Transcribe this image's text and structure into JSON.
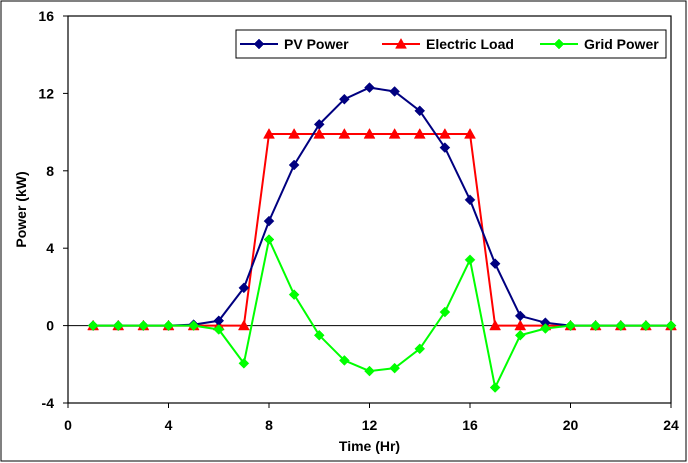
{
  "chart_data": {
    "type": "line",
    "title": "",
    "xlabel": "Time (Hr)",
    "ylabel": "Power (kW)",
    "xlim": [
      0,
      24
    ],
    "ylim": [
      -4,
      16
    ],
    "xticks": [
      0,
      4,
      8,
      12,
      16,
      20,
      24
    ],
    "yticks": [
      -4,
      0,
      4,
      8,
      12,
      16
    ],
    "grid": false,
    "legend_position": "top-right",
    "x": [
      1,
      2,
      3,
      4,
      5,
      6,
      7,
      8,
      9,
      10,
      11,
      12,
      13,
      14,
      15,
      16,
      17,
      18,
      19,
      20,
      21,
      22,
      23,
      24
    ],
    "series": [
      {
        "name": "PV Power",
        "color": "#000080",
        "marker": "diamond",
        "values": [
          0,
          0,
          0,
          0,
          0.05,
          0.25,
          1.95,
          5.4,
          8.3,
          10.4,
          11.7,
          12.3,
          12.1,
          11.1,
          9.2,
          6.5,
          3.2,
          0.5,
          0.15,
          0,
          0,
          0,
          0,
          0
        ]
      },
      {
        "name": "Electric Load",
        "color": "#ff0000",
        "marker": "triangle",
        "values": [
          0,
          0,
          0,
          0,
          0,
          0,
          0,
          9.9,
          9.9,
          9.9,
          9.9,
          9.9,
          9.9,
          9.9,
          9.9,
          9.9,
          0,
          0,
          0,
          0,
          0,
          0,
          0,
          0
        ]
      },
      {
        "name": "Grid Power",
        "color": "#00ff00",
        "marker": "diamond",
        "values": [
          0,
          0,
          0,
          0,
          0,
          -0.2,
          -1.95,
          4.45,
          1.6,
          -0.5,
          -1.8,
          -2.35,
          -2.2,
          -1.2,
          0.7,
          3.4,
          -3.2,
          -0.5,
          -0.15,
          0,
          0,
          0,
          0,
          0
        ]
      }
    ]
  }
}
